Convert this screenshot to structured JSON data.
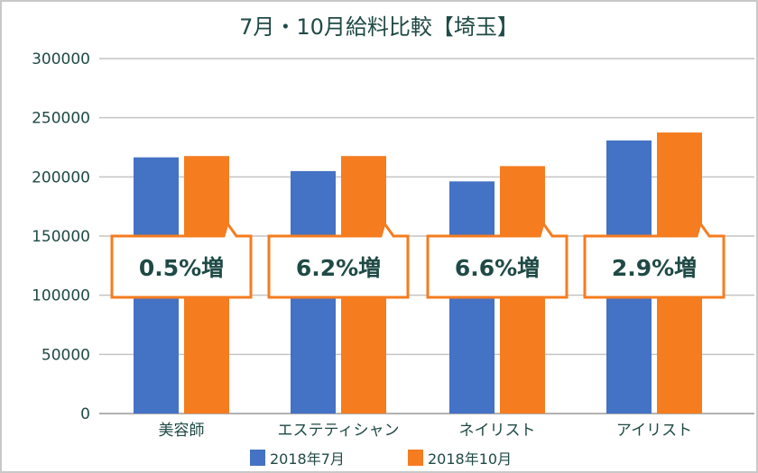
{
  "chart_data": {
    "type": "bar",
    "title": "7月・10月給料比較【埼玉】",
    "categories": [
      "美容師",
      "エステティシャン",
      "ネイリスト",
      "アイリスト"
    ],
    "series": [
      {
        "name": "2018年7月",
        "color": "#4472c4",
        "values": [
          216500,
          204900,
          196200,
          230800
        ]
      },
      {
        "name": "2018年10月",
        "color": "#f57c1f",
        "values": [
          217600,
          217600,
          209100,
          237500
        ]
      }
    ],
    "annotations": [
      "0.5%増",
      "6.2%増",
      "6.6%増",
      "2.9%増"
    ],
    "annotation_color": "#f57c1f",
    "ylim": [
      0,
      300000
    ],
    "yticks": [
      "0",
      "50000",
      "100000",
      "150000",
      "200000",
      "250000",
      "300000"
    ],
    "xlabel": "",
    "ylabel": "",
    "grid": true,
    "legend_position": "bottom"
  }
}
